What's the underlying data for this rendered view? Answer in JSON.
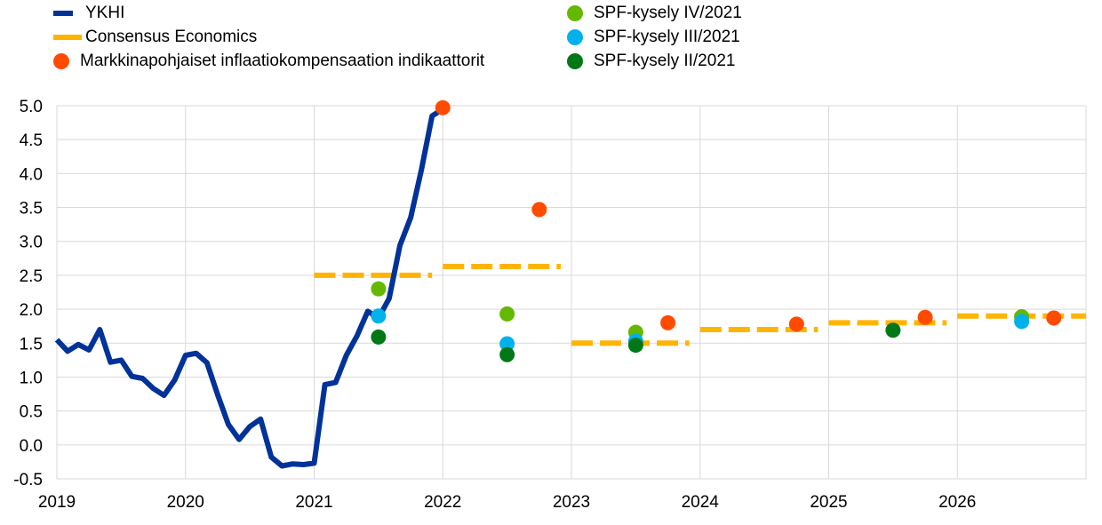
{
  "legend": {
    "items": [
      {
        "label": "YKHI",
        "type": "line",
        "color": "#003299"
      },
      {
        "label": "Consensus Economics",
        "type": "dash",
        "color": "#FFB400"
      },
      {
        "label": "Markkinapohjaiset inflaatiokompensaation indikaattorit",
        "type": "dot",
        "color": "#FF4B00"
      },
      {
        "label": "SPF-kysely IV/2021",
        "type": "dot",
        "color": "#65B800"
      },
      {
        "label": "SPF-kysely III/2021",
        "type": "dot",
        "color": "#00B1EA"
      },
      {
        "label": "SPF-kysely II/2021",
        "type": "dot",
        "color": "#007816"
      }
    ]
  },
  "chart_data": {
    "type": "line",
    "x_type": "date",
    "xlim": [
      "2019-01",
      "2027-01"
    ],
    "ylim": [
      -0.5,
      5.0
    ],
    "x_ticks": [
      "2019",
      "2020",
      "2021",
      "2022",
      "2023",
      "2024",
      "2025",
      "2026"
    ],
    "y_ticks": [
      "-0.5",
      "0.0",
      "0.5",
      "1.0",
      "1.5",
      "2.0",
      "2.5",
      "3.0",
      "3.5",
      "4.0",
      "4.5",
      "5.0"
    ],
    "grid": true,
    "legend_position": "top",
    "series": [
      {
        "name": "YKHI",
        "kind": "line",
        "color": "#003299",
        "points": [
          [
            "2019-01",
            1.55
          ],
          [
            "2019-02",
            1.38
          ],
          [
            "2019-03",
            1.48
          ],
          [
            "2019-04",
            1.4
          ],
          [
            "2019-05",
            1.7
          ],
          [
            "2019-06",
            1.22
          ],
          [
            "2019-07",
            1.25
          ],
          [
            "2019-08",
            1.01
          ],
          [
            "2019-09",
            0.98
          ],
          [
            "2019-10",
            0.83
          ],
          [
            "2019-11",
            0.73
          ],
          [
            "2019-12",
            0.96
          ],
          [
            "2020-01",
            1.32
          ],
          [
            "2020-02",
            1.35
          ],
          [
            "2020-03",
            1.21
          ],
          [
            "2020-04",
            0.74
          ],
          [
            "2020-05",
            0.3
          ],
          [
            "2020-06",
            0.08
          ],
          [
            "2020-07",
            0.27
          ],
          [
            "2020-08",
            0.38
          ],
          [
            "2020-09",
            -0.18
          ],
          [
            "2020-10",
            -0.31
          ],
          [
            "2020-11",
            -0.28
          ],
          [
            "2020-12",
            -0.29
          ],
          [
            "2021-01",
            -0.27
          ],
          [
            "2021-02",
            0.89
          ],
          [
            "2021-03",
            0.92
          ],
          [
            "2021-04",
            1.32
          ],
          [
            "2021-05",
            1.61
          ],
          [
            "2021-06",
            1.97
          ],
          [
            "2021-07",
            1.87
          ],
          [
            "2021-08",
            2.16
          ],
          [
            "2021-09",
            2.94
          ],
          [
            "2021-10",
            3.35
          ],
          [
            "2021-11",
            4.05
          ],
          [
            "2021-12",
            4.85
          ],
          [
            "2022-01",
            4.95
          ]
        ]
      },
      {
        "name": "Consensus Economics",
        "kind": "dash",
        "color": "#FFB400",
        "segments": [
          {
            "start": "2021-01",
            "end": "2021-12",
            "value": 2.5
          },
          {
            "start": "2022-01",
            "end": "2022-12",
            "value": 2.63
          },
          {
            "start": "2023-01",
            "end": "2023-12",
            "value": 1.5
          },
          {
            "start": "2024-01",
            "end": "2024-12",
            "value": 1.7
          },
          {
            "start": "2025-01",
            "end": "2025-12",
            "value": 1.8
          },
          {
            "start": "2026-01",
            "end": "2027-01",
            "value": 1.9
          }
        ]
      },
      {
        "name": "Markkinapohjaiset inflaatiokompensaation indikaattorit",
        "kind": "dot",
        "color": "#FF4B00",
        "points": [
          [
            "2022-01",
            4.97
          ],
          [
            "2022-10",
            3.47
          ],
          [
            "2023-10",
            1.8
          ],
          [
            "2024-10",
            1.78
          ],
          [
            "2025-10",
            1.88
          ],
          [
            "2026-10",
            1.87
          ]
        ]
      },
      {
        "name": "SPF-kysely IV/2021",
        "kind": "dot",
        "color": "#65B800",
        "points": [
          [
            "2021-07",
            2.3
          ],
          [
            "2022-07",
            1.93
          ],
          [
            "2023-07",
            1.66
          ],
          [
            "2026-07",
            1.89
          ]
        ]
      },
      {
        "name": "SPF-kysely III/2021",
        "kind": "dot",
        "color": "#00B1EA",
        "points": [
          [
            "2021-07",
            1.9
          ],
          [
            "2022-07",
            1.49
          ],
          [
            "2023-07",
            1.53
          ],
          [
            "2026-07",
            1.82
          ]
        ]
      },
      {
        "name": "SPF-kysely II/2021",
        "kind": "dot",
        "color": "#007816",
        "points": [
          [
            "2021-07",
            1.59
          ],
          [
            "2022-07",
            1.33
          ],
          [
            "2023-07",
            1.47
          ],
          [
            "2025-07",
            1.69
          ]
        ]
      }
    ]
  }
}
